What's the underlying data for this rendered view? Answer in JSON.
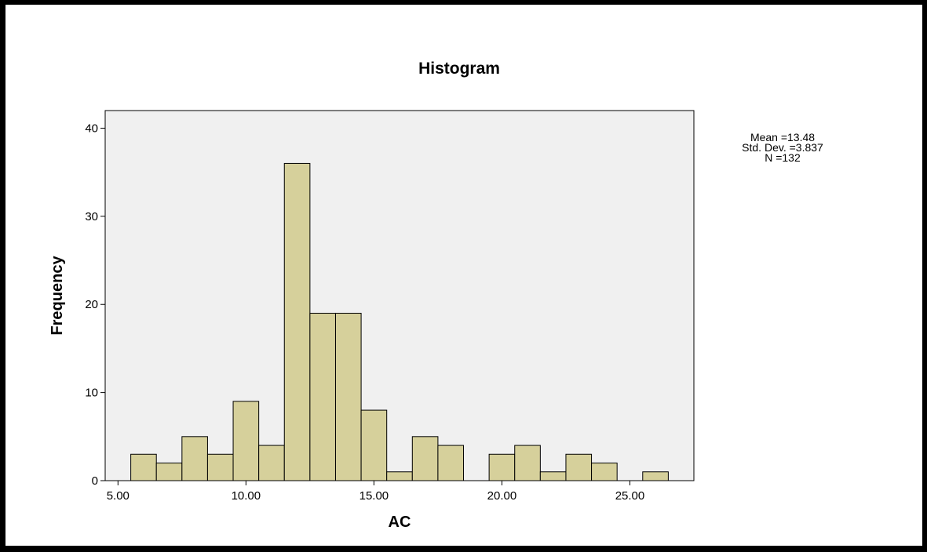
{
  "chart_data": {
    "type": "bar",
    "title": "Histogram",
    "xlabel": "AC",
    "ylabel": "Frequency",
    "xlim": [
      4.5,
      27.5
    ],
    "ylim": [
      0,
      42
    ],
    "x_ticks": [
      5,
      10,
      15,
      20,
      25
    ],
    "x_tick_labels": [
      "5.00",
      "10.00",
      "15.00",
      "20.00",
      "25.00"
    ],
    "y_ticks": [
      0,
      10,
      20,
      30,
      40
    ],
    "y_tick_labels": [
      "0",
      "10",
      "20",
      "30",
      "40"
    ],
    "bin_width": 1,
    "bins": [
      {
        "start": 5.5,
        "end": 6.5,
        "count": 3
      },
      {
        "start": 6.5,
        "end": 7.5,
        "count": 2
      },
      {
        "start": 7.5,
        "end": 8.5,
        "count": 5
      },
      {
        "start": 8.5,
        "end": 9.5,
        "count": 3
      },
      {
        "start": 9.5,
        "end": 10.5,
        "count": 9
      },
      {
        "start": 10.5,
        "end": 11.5,
        "count": 4
      },
      {
        "start": 11.5,
        "end": 12.5,
        "count": 36
      },
      {
        "start": 12.5,
        "end": 13.5,
        "count": 19
      },
      {
        "start": 13.5,
        "end": 14.5,
        "count": 19
      },
      {
        "start": 14.5,
        "end": 15.5,
        "count": 8
      },
      {
        "start": 15.5,
        "end": 16.5,
        "count": 1
      },
      {
        "start": 16.5,
        "end": 17.5,
        "count": 5
      },
      {
        "start": 17.5,
        "end": 18.5,
        "count": 4
      },
      {
        "start": 19.5,
        "end": 20.5,
        "count": 3
      },
      {
        "start": 20.5,
        "end": 21.5,
        "count": 4
      },
      {
        "start": 21.5,
        "end": 22.5,
        "count": 1
      },
      {
        "start": 22.5,
        "end": 23.5,
        "count": 3
      },
      {
        "start": 23.5,
        "end": 24.5,
        "count": 2
      },
      {
        "start": 25.5,
        "end": 26.5,
        "count": 1
      }
    ],
    "stats": [
      "Mean =13.48",
      "Std. Dev. =3.837",
      "N =132"
    ],
    "grid": false,
    "colors": {
      "bar_fill": "#d6d09b",
      "bar_stroke": "#000000",
      "plot_background": "#f0f0f0",
      "frame": "#000000"
    }
  }
}
